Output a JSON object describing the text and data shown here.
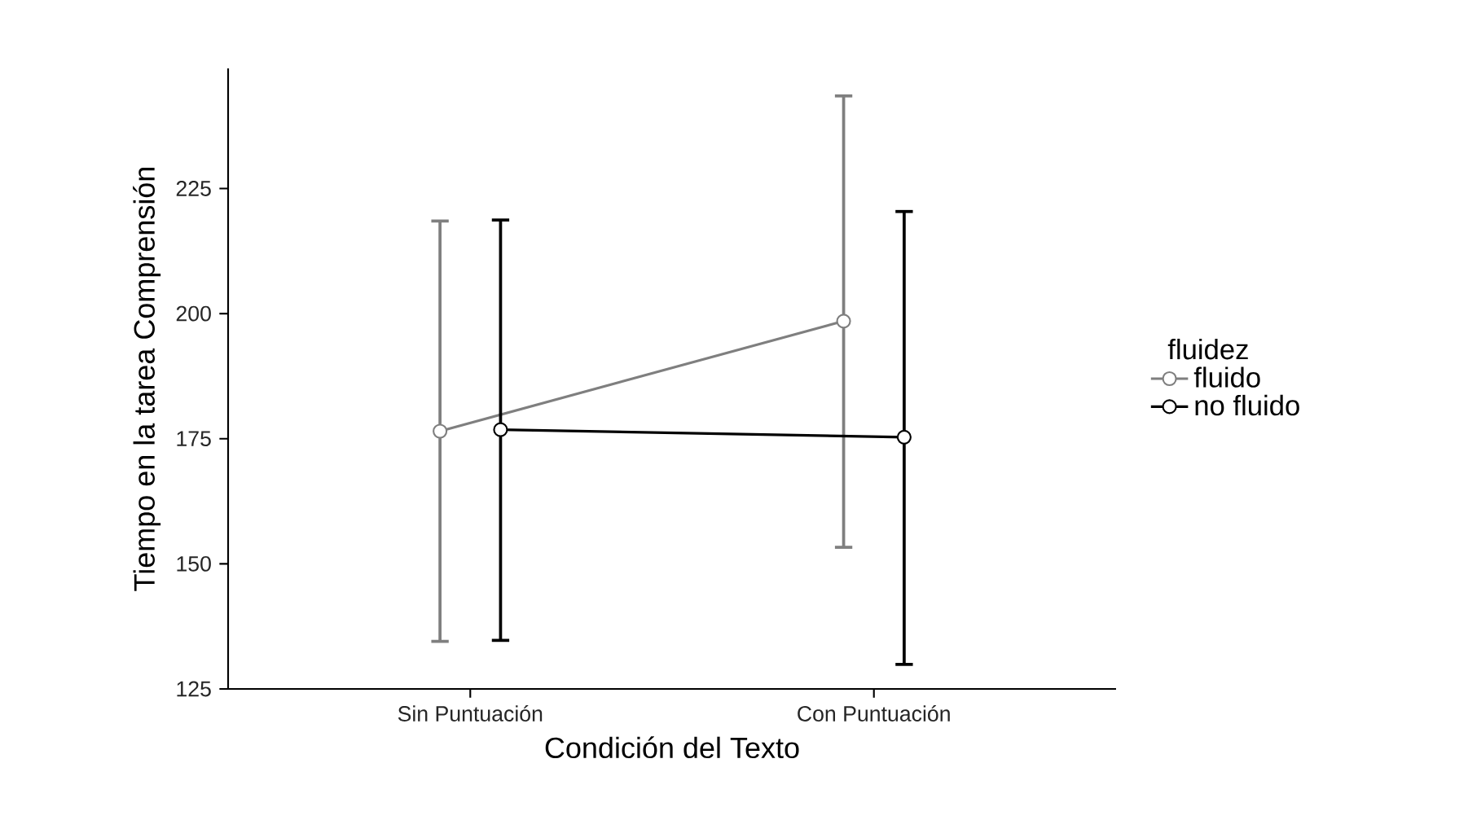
{
  "chart_data": {
    "type": "line",
    "xlabel": "Condición del Texto",
    "ylabel": "Tiempo en la tarea Comprensión",
    "legend_title": "fluidez",
    "categories": [
      "Sin Puntuación",
      "Con Puntuación"
    ],
    "series": [
      {
        "name": "fluido",
        "color": "#7f7f7f",
        "values": [
          176.5,
          198.5
        ],
        "errors": [
          [
            134.5,
            218.5
          ],
          [
            153.3,
            243.5
          ]
        ]
      },
      {
        "name": "no fluido",
        "color": "#000000",
        "values": [
          176.8,
          175.3
        ],
        "errors": [
          [
            134.7,
            218.7
          ],
          [
            129.9,
            220.4
          ]
        ]
      }
    ],
    "ylim": [
      125,
      249
    ],
    "yticks": [
      125,
      150,
      175,
      200,
      225
    ],
    "grid": false,
    "legend": "right",
    "marker": "circle",
    "line_style": "solid"
  }
}
